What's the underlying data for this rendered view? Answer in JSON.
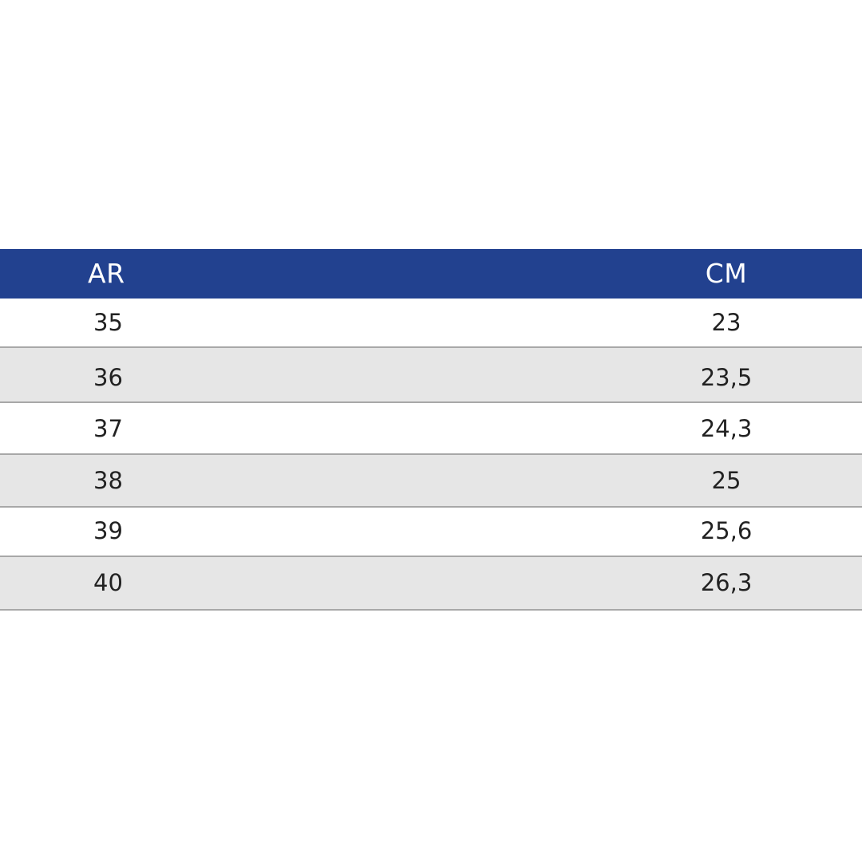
{
  "table": {
    "headers": {
      "ar": "AR",
      "cm": "CM"
    },
    "rows": [
      {
        "ar": "35",
        "cm": "23"
      },
      {
        "ar": "36",
        "cm": "23,5"
      },
      {
        "ar": "37",
        "cm": "24,3"
      },
      {
        "ar": "38",
        "cm": "25"
      },
      {
        "ar": "39",
        "cm": "25,6"
      },
      {
        "ar": "40",
        "cm": "26,3"
      }
    ]
  },
  "colors": {
    "header_background": "#22418f",
    "header_text": "#ffffff",
    "row_alternate": "#e6e6e6",
    "divider": "#a8a8a8"
  }
}
